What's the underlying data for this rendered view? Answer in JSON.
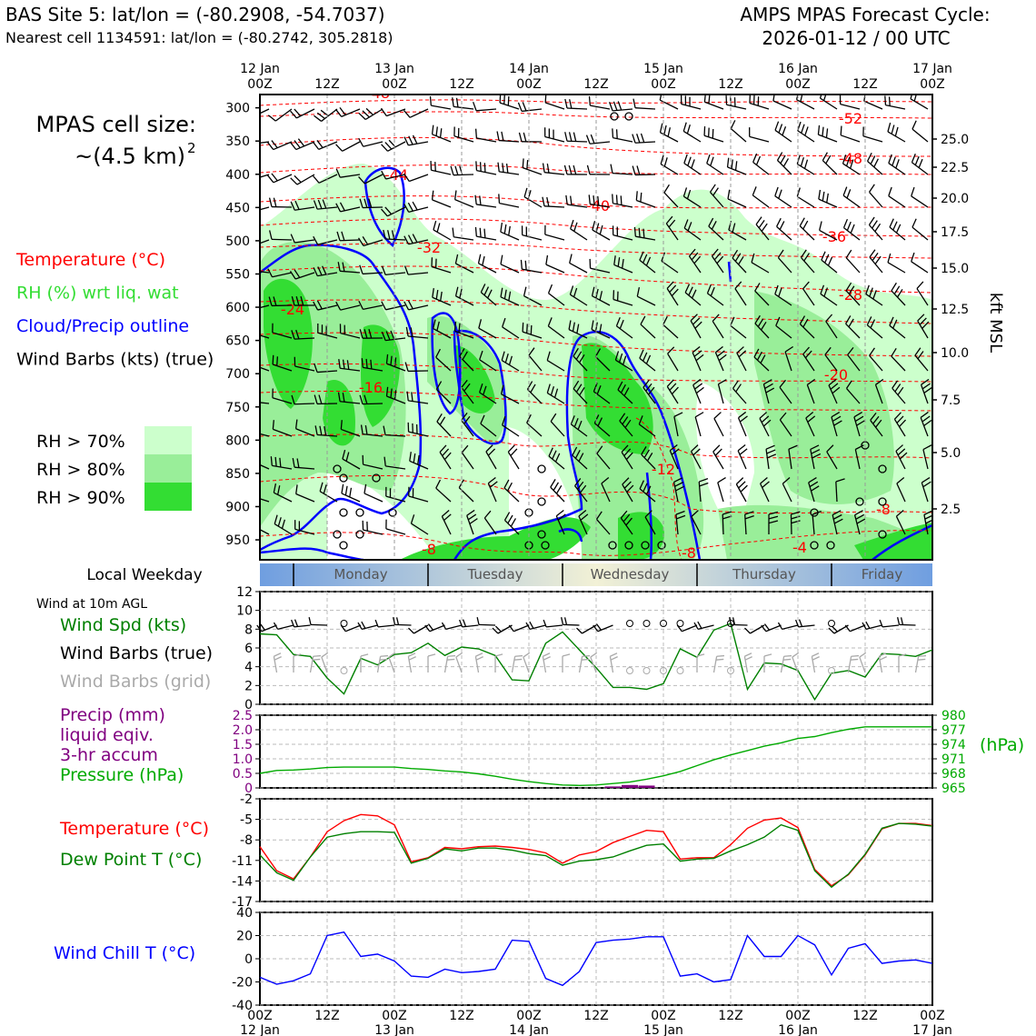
{
  "header": {
    "site_title": "BAS Site 5: lat/lon = (-80.2908, -54.7037)",
    "nearest_cell": "Nearest cell 1134591: lat/lon = (-80.2742, 305.2818)",
    "forecast_title": "AMPS MPAS Forecast Cycle:",
    "forecast_cycle": "2026-01-12 / 00 UTC"
  },
  "cell_size": {
    "label": "MPAS cell size:",
    "value": "~(4.5 km)",
    "exponent": "2"
  },
  "legend_main": [
    {
      "text": "Temperature (°C)",
      "color": "#ff0000"
    },
    {
      "text": "RH (%) wrt liq. wat",
      "color": "#33dd33"
    },
    {
      "text": "Cloud/Precip outline",
      "color": "#0000ff"
    },
    {
      "text": "Wind Barbs (kts) (true)",
      "color": "#000000"
    }
  ],
  "rh_legend": [
    {
      "text": "RH > 70%",
      "color": "#ccffcc"
    },
    {
      "text": "RH > 80%",
      "color": "#99ee99"
    },
    {
      "text": "RH > 90%",
      "color": "#33dd33"
    }
  ],
  "time_axis": {
    "top_labels": [
      {
        "day": "12 Jan",
        "hour": "00Z"
      },
      {
        "day": "",
        "hour": "12Z"
      },
      {
        "day": "13 Jan",
        "hour": "00Z"
      },
      {
        "day": "",
        "hour": "12Z"
      },
      {
        "day": "14 Jan",
        "hour": "00Z"
      },
      {
        "day": "",
        "hour": "12Z"
      },
      {
        "day": "15 Jan",
        "hour": "00Z"
      },
      {
        "day": "",
        "hour": "12Z"
      },
      {
        "day": "16 Jan",
        "hour": "00Z"
      },
      {
        "day": "",
        "hour": "12Z"
      },
      {
        "day": "17 Jan",
        "hour": "00Z"
      }
    ]
  },
  "weekday_bar": {
    "label": "Local Weekday",
    "days": [
      "Monday",
      "Tuesday",
      "Wednesday",
      "Thursday",
      "Friday"
    ]
  },
  "wind_panel": {
    "title": "Wind at 10m AGL",
    "labels": [
      {
        "text": "Wind Spd (kts)",
        "color": "#008000"
      },
      {
        "text": "Wind Barbs (true)",
        "color": "#000000"
      },
      {
        "text": "Wind Barbs (grid)",
        "color": "#aaaaaa"
      }
    ]
  },
  "precip_panel": {
    "labels": [
      {
        "text": "Precip (mm)",
        "color": "#800080"
      },
      {
        "text": "liquid eqiv.",
        "color": "#800080"
      },
      {
        "text": "3-hr accum",
        "color": "#800080"
      },
      {
        "text": "Pressure (hPa)",
        "color": "#00aa00"
      }
    ],
    "right_unit": "(hPa)"
  },
  "temp_panel": {
    "labels": [
      {
        "text": "Temperature (°C)",
        "color": "#ff0000"
      },
      {
        "text": "Dew Point T (°C)",
        "color": "#008000"
      }
    ]
  },
  "windchill_panel": {
    "labels": [
      {
        "text": "Wind Chill T (°C)",
        "color": "#0000ff"
      }
    ]
  },
  "chart_data": [
    {
      "type": "contour",
      "name": "cross-section",
      "y_axis": {
        "label": "",
        "ticks": [
          "300",
          "350",
          "400",
          "450",
          "500",
          "550",
          "600",
          "650",
          "700",
          "750",
          "800",
          "850",
          "900",
          "950"
        ]
      },
      "y_axis_right": {
        "label": "kft MSL",
        "ticks": [
          "25.0",
          "22.5",
          "20.0",
          "17.5",
          "15.0",
          "12.5",
          "10.0",
          "7.5",
          "5.0",
          "2.5"
        ]
      },
      "temperature_labels": [
        "-48",
        "-52",
        "-48",
        "-44",
        "-40",
        "-36",
        "-32",
        "-28",
        "-24",
        "-20",
        "-16",
        "-12",
        "-8",
        "-8",
        "-8",
        "-4"
      ]
    },
    {
      "type": "line",
      "name": "wind speed",
      "y_ticks": [
        "0",
        "2",
        "4",
        "6",
        "8",
        "10",
        "12"
      ],
      "ylim": [
        0,
        12
      ],
      "x_hours": [
        0,
        3,
        6,
        9,
        12,
        15,
        18,
        21,
        24,
        27,
        30,
        33,
        36,
        39,
        42,
        45,
        48,
        51,
        54,
        57,
        60,
        63,
        66,
        69,
        72,
        75,
        78,
        81,
        84,
        87,
        90,
        93,
        96,
        99,
        102,
        105,
        108,
        111,
        114,
        117,
        120
      ],
      "values": [
        7.5,
        7.4,
        5.3,
        5.1,
        2.8,
        1.1,
        4.9,
        4.2,
        5.3,
        5.5,
        6.5,
        5.2,
        6.1,
        5.9,
        5.2,
        2.6,
        2.5,
        6.5,
        7.7,
        5.8,
        3.9,
        1.8,
        1.8,
        1.6,
        2.2,
        5.9,
        5.0,
        7.9,
        8.6,
        1.6,
        4.4,
        4.3,
        3.6,
        0.5,
        3.3,
        3.6,
        2.9,
        5.4,
        5.3,
        5.1,
        5.8
      ]
    },
    {
      "type": "line",
      "name": "pressure and precip",
      "y_ticks_left": [
        "0",
        "0.5",
        "1.0",
        "1.5",
        "2.0",
        "2.5"
      ],
      "ylim_left": [
        0,
        2.5
      ],
      "y_ticks_right": [
        "965",
        "968",
        "971",
        "974",
        "977",
        "980"
      ],
      "ylim_right": [
        965,
        980
      ],
      "x_hours": [
        0,
        3,
        6,
        9,
        12,
        15,
        18,
        21,
        24,
        27,
        30,
        33,
        36,
        39,
        42,
        45,
        48,
        51,
        54,
        57,
        60,
        63,
        66,
        69,
        72,
        75,
        78,
        81,
        84,
        87,
        90,
        93,
        96,
        99,
        102,
        105,
        108,
        111,
        114,
        117,
        120
      ],
      "pressure": [
        968.0,
        968.6,
        968.7,
        968.9,
        969.2,
        969.3,
        969.3,
        969.3,
        969.3,
        969.0,
        968.8,
        968.5,
        968.3,
        967.9,
        967.4,
        966.8,
        966.3,
        965.9,
        965.6,
        965.5,
        965.6,
        965.9,
        966.2,
        966.8,
        967.5,
        968.4,
        969.6,
        970.8,
        971.8,
        972.7,
        973.6,
        974.3,
        975.2,
        975.6,
        976.4,
        977.1,
        977.6,
        977.6,
        977.6,
        977.6,
        977.6
      ],
      "precip": [
        0,
        0,
        0,
        0,
        0,
        0,
        0,
        0,
        0,
        0,
        0,
        0,
        0,
        0,
        0,
        0,
        0,
        0,
        0,
        0,
        0,
        0.05,
        0.1,
        0.08,
        0,
        0,
        0,
        0,
        0,
        0,
        0,
        0,
        0,
        0,
        0,
        0,
        0,
        0,
        0,
        0,
        0
      ]
    },
    {
      "type": "line",
      "name": "temperature and dew point",
      "y_ticks": [
        "-17",
        "-14",
        "-11",
        "-8",
        "-5",
        "-2"
      ],
      "ylim": [
        -17,
        -2
      ],
      "x_hours": [
        0,
        3,
        6,
        9,
        12,
        15,
        18,
        21,
        24,
        27,
        30,
        33,
        36,
        39,
        42,
        45,
        48,
        51,
        54,
        57,
        60,
        63,
        66,
        69,
        72,
        75,
        78,
        81,
        84,
        87,
        90,
        93,
        96,
        99,
        102,
        105,
        108,
        111,
        114,
        117,
        120
      ],
      "temperature": [
        -9.0,
        -12.5,
        -13.7,
        -10.5,
        -6.8,
        -5.2,
        -4.3,
        -4.5,
        -5.8,
        -11.2,
        -10.6,
        -9.1,
        -9.3,
        -9.0,
        -8.9,
        -9.1,
        -9.4,
        -9.9,
        -11.4,
        -10.2,
        -9.7,
        -8.4,
        -7.5,
        -6.6,
        -6.8,
        -10.8,
        -10.6,
        -10.6,
        -8.7,
        -6.3,
        -5.1,
        -4.8,
        -6.2,
        -12.3,
        -14.7,
        -13.1,
        -10.2,
        -6.4,
        -5.6,
        -5.6,
        -5.9
      ],
      "dew_point": [
        -10.2,
        -12.8,
        -13.9,
        -10.5,
        -7.6,
        -7.1,
        -6.8,
        -6.8,
        -6.9,
        -11.4,
        -10.7,
        -9.3,
        -9.6,
        -9.2,
        -9.2,
        -9.5,
        -10.0,
        -10.3,
        -11.7,
        -11.1,
        -10.9,
        -10.5,
        -9.6,
        -8.8,
        -8.6,
        -11.1,
        -10.8,
        -10.7,
        -9.6,
        -8.7,
        -7.6,
        -5.8,
        -6.6,
        -12.5,
        -14.9,
        -13.0,
        -10.1,
        -6.3,
        -5.6,
        -5.7,
        -6.0
      ]
    },
    {
      "type": "line",
      "name": "wind chill",
      "y_ticks": [
        "-40",
        "-20",
        "0",
        "20",
        "40"
      ],
      "ylim": [
        -40,
        40
      ],
      "x_hours": [
        0,
        3,
        6,
        9,
        12,
        15,
        18,
        21,
        24,
        27,
        30,
        33,
        36,
        39,
        42,
        45,
        48,
        51,
        54,
        57,
        60,
        63,
        66,
        69,
        72,
        75,
        78,
        81,
        84,
        87,
        90,
        93,
        96,
        99,
        102,
        105,
        108,
        111,
        114,
        117,
        120
      ],
      "values": [
        -16,
        -22,
        -19,
        -13,
        20,
        23,
        2,
        4,
        -2,
        -15,
        -16,
        -9,
        -12,
        -11,
        -9,
        16,
        15,
        -17,
        -23,
        -11,
        14,
        16,
        17,
        19,
        19,
        -15,
        -13,
        -20,
        -18,
        20,
        2,
        2,
        20,
        12,
        -14,
        9,
        13,
        -4,
        -2,
        -1,
        -4
      ]
    }
  ],
  "bottom_axis": {
    "hours": [
      "00Z",
      "12Z",
      "00Z",
      "12Z",
      "00Z",
      "12Z",
      "00Z",
      "12Z",
      "00Z",
      "12Z",
      "00Z"
    ],
    "days": [
      "12 Jan",
      "",
      "13 Jan",
      "",
      "14 Jan",
      "",
      "15 Jan",
      "",
      "16 Jan",
      "",
      "17 Jan"
    ]
  }
}
